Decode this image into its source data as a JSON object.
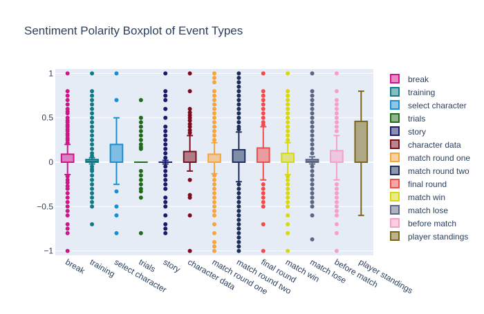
{
  "chart_data": {
    "type": "box",
    "title": "Sentiment Polarity Boxplot of Event Types",
    "xlabel": "",
    "ylabel": "",
    "ylim": [
      -1.05,
      1.05
    ],
    "y_ticks": [
      -1,
      -0.5,
      0,
      0.5,
      1
    ],
    "y_tick_labels": [
      "−1",
      "−0.5",
      "0",
      "0.5",
      "1"
    ],
    "grid": true,
    "legend_position": "right",
    "series": [
      {
        "name": "break",
        "color": "#d1148a",
        "q1": 0.0,
        "median": 0.0,
        "q3": 0.09,
        "lower_fence": -0.14,
        "upper_fence": 0.2,
        "outliers": [
          1,
          0.8,
          0.75,
          0.7,
          0.65,
          0.6,
          0.57,
          0.55,
          0.5,
          0.47,
          0.45,
          0.42,
          0.4,
          0.37,
          0.35,
          0.32,
          0.3,
          0.27,
          0.25,
          0.22,
          -0.16,
          -0.2,
          -0.23,
          -0.27,
          -0.3,
          -0.35,
          -0.4,
          -0.45,
          -0.5,
          -0.55,
          -0.6,
          -0.7,
          -0.75,
          -0.8,
          -1
        ]
      },
      {
        "name": "training",
        "color": "#0e7b86",
        "q1": 0.0,
        "median": 0.01,
        "q3": 0.03,
        "lower_fence": -0.02,
        "upper_fence": 0.05,
        "outliers": [
          1,
          0.8,
          0.75,
          0.7,
          0.65,
          0.6,
          0.55,
          0.5,
          0.45,
          0.4,
          0.35,
          0.3,
          0.25,
          0.2,
          0.15,
          0.1,
          0.07,
          -0.05,
          -0.08,
          -0.1,
          -0.15,
          -0.2,
          -0.25,
          -0.3,
          -0.35,
          -0.4,
          -0.45,
          -0.5,
          -0.7
        ]
      },
      {
        "name": "select character",
        "color": "#1a8ecf",
        "q1": 0.0,
        "median": 0.0,
        "q3": 0.2,
        "lower_fence": -0.25,
        "upper_fence": 0.5,
        "outliers": [
          1,
          0.7,
          -0.33,
          -0.5,
          -0.6,
          -0.8
        ]
      },
      {
        "name": "trials",
        "color": "#1f6b1a",
        "q1": 0.0,
        "median": 0.0,
        "q3": 0.0,
        "lower_fence": 0.0,
        "upper_fence": 0.0,
        "outliers": [
          0.7,
          0.5,
          0.45,
          0.4,
          0.35,
          0.3,
          0.25,
          0.2,
          0.17,
          0.15,
          -0.1,
          -0.15,
          -0.2,
          -0.25,
          -0.3,
          -0.33,
          -0.4,
          -0.8
        ]
      },
      {
        "name": "story",
        "color": "#1a1a6e",
        "q1": 0.0,
        "median": 0.0,
        "q3": 0.0,
        "lower_fence": -0.02,
        "upper_fence": 0.02,
        "outliers": [
          1,
          0.8,
          0.75,
          0.7,
          0.6,
          0.5,
          0.4,
          0.35,
          0.3,
          0.25,
          0.2,
          0.15,
          0.1,
          0.05,
          -0.05,
          -0.1,
          -0.15,
          -0.2,
          -0.25,
          -0.3,
          -0.4,
          -0.45,
          -0.5,
          -0.6,
          -0.7,
          -0.75,
          -0.8
        ]
      },
      {
        "name": "character data",
        "color": "#7a0c1e",
        "q1": 0.0,
        "median": 0.0,
        "q3": 0.12,
        "lower_fence": -0.1,
        "upper_fence": 0.3,
        "outliers": [
          1,
          0.8,
          0.6,
          0.56,
          0.53,
          0.5,
          0.47,
          0.43,
          0.4,
          0.36,
          0.33,
          -0.2,
          -0.37,
          -0.4,
          -0.6,
          -1
        ]
      },
      {
        "name": "match round one",
        "color": "#f7a43c",
        "q1": 0.0,
        "median": 0.0,
        "q3": 0.09,
        "lower_fence": -0.13,
        "upper_fence": 0.22,
        "outliers": [
          1,
          0.95,
          0.9,
          0.8,
          0.75,
          0.7,
          0.65,
          0.6,
          0.55,
          0.5,
          0.45,
          0.4,
          0.35,
          0.3,
          0.25,
          -0.15,
          -0.2,
          -0.25,
          -0.3,
          -0.35,
          -0.4,
          -0.45,
          -0.5,
          -0.55,
          -0.6,
          -0.7,
          -0.8,
          -0.9,
          -0.95,
          -1
        ]
      },
      {
        "name": "match round two",
        "color": "#1c2e5a",
        "q1": 0.0,
        "median": 0.0,
        "q3": 0.14,
        "lower_fence": -0.22,
        "upper_fence": 0.34,
        "outliers": [
          1,
          0.95,
          0.9,
          0.85,
          0.8,
          0.75,
          0.7,
          0.65,
          0.6,
          0.55,
          0.5,
          0.45,
          0.4,
          0.37,
          -0.25,
          -0.3,
          -0.35,
          -0.4,
          -0.45,
          -0.5,
          -0.55,
          -0.6,
          -0.65,
          -0.7,
          -0.75,
          -0.8,
          -0.85,
          -0.9,
          -0.95,
          -1
        ]
      },
      {
        "name": "final round",
        "color": "#f04c4c",
        "q1": 0.0,
        "median": 0.0,
        "q3": 0.16,
        "lower_fence": -0.2,
        "upper_fence": 0.4,
        "outliers": [
          1,
          0.8,
          0.75,
          0.7,
          0.65,
          0.6,
          0.55,
          0.5,
          0.45,
          0.42,
          -0.25,
          -0.3,
          -0.35,
          -0.4,
          -0.45,
          -0.5,
          -0.7,
          -1
        ]
      },
      {
        "name": "match win",
        "color": "#d8d80e",
        "q1": 0.0,
        "median": 0.0,
        "q3": 0.1,
        "lower_fence": -0.14,
        "upper_fence": 0.22,
        "outliers": [
          1,
          0.8,
          0.75,
          0.7,
          0.65,
          0.6,
          0.55,
          0.5,
          0.45,
          0.4,
          0.35,
          0.3,
          0.25,
          -0.16,
          -0.2,
          -0.25,
          -0.3,
          -0.35,
          -0.4,
          -0.45,
          -0.5,
          -0.6,
          -0.7,
          -0.8,
          -1
        ]
      },
      {
        "name": "match lose",
        "color": "#5d6783",
        "q1": 0.0,
        "median": 0.01,
        "q3": 0.03,
        "lower_fence": -0.02,
        "upper_fence": 0.06,
        "outliers": [
          1,
          0.8,
          0.75,
          0.7,
          0.65,
          0.6,
          0.55,
          0.5,
          0.45,
          0.4,
          0.35,
          0.3,
          0.25,
          0.2,
          0.15,
          0.1,
          -0.05,
          -0.1,
          -0.15,
          -0.2,
          -0.25,
          -0.3,
          -0.35,
          -0.4,
          -0.45,
          -0.5,
          -0.6,
          -0.87
        ]
      },
      {
        "name": "before match",
        "color": "#f6a0c8",
        "q1": 0.0,
        "median": 0.0,
        "q3": 0.13,
        "lower_fence": -0.2,
        "upper_fence": 0.3,
        "outliers": [
          1,
          0.8,
          0.7,
          0.65,
          0.6,
          0.55,
          0.5,
          0.45,
          0.4,
          0.35,
          -0.25,
          -0.3,
          -0.35,
          -0.4,
          -0.45,
          -0.5,
          -0.55,
          -0.6,
          -0.7,
          -0.8,
          -1
        ]
      },
      {
        "name": "player standings",
        "color": "#7a6415",
        "q1": 0.0,
        "median": 0.0,
        "q3": 0.46,
        "lower_fence": -0.6,
        "upper_fence": 0.8,
        "outliers": []
      }
    ]
  }
}
